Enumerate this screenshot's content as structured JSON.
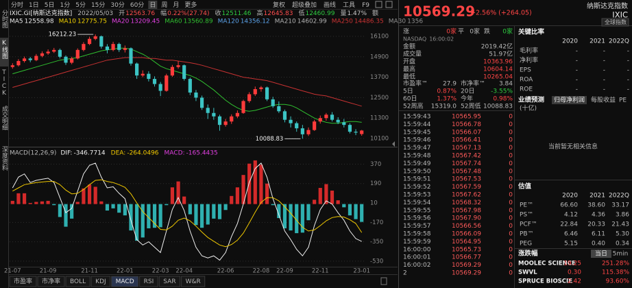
{
  "toolbar": {
    "tabs": [
      "分时",
      "1日",
      "5日",
      "1分",
      "5分",
      "15分",
      "30分",
      "60分",
      "日",
      "周",
      "月",
      "更多"
    ],
    "tools": [
      "复权",
      "超级叠加",
      "画线",
      "工具",
      "F9"
    ]
  },
  "sidebar": [
    "分时图",
    "K线图",
    "TICK",
    "成交明细",
    "深度资料"
  ],
  "info": {
    "symbol": "IXIC.GI[纳斯达克指数]",
    "date": "2022/05/03",
    "fields": [
      {
        "label": "开",
        "value": 12563.76,
        "color": "#ff4d4d"
      },
      {
        "label": "幅",
        "value": "0.22%(27.74)",
        "color": "#ff4d4d"
      },
      {
        "label": "收",
        "value": 12511.46,
        "color": "#2ecc40"
      },
      {
        "label": "高",
        "value": 12645.83,
        "color": "#ff4d4d"
      },
      {
        "label": "低",
        "value": 12460.99,
        "color": "#2ecc40"
      },
      {
        "label": "量",
        "value": "1.47%",
        "color": "#c8c8c8"
      },
      {
        "label": "额",
        "color": "#c8c8c8"
      }
    ]
  },
  "chart_data": [
    {
      "type": "candlestick",
      "up_color": "#ff3b3b",
      "down_color": "#3cc4c4",
      "open": [
        14300,
        14400,
        14650,
        14800,
        14700,
        14950,
        15100,
        15200,
        15300,
        14900,
        14550,
        14800,
        15300,
        15650,
        15950,
        16100,
        15500,
        15300,
        15650,
        15300,
        15400,
        14500,
        13800,
        13900,
        13600,
        13300,
        12900,
        13800,
        14300,
        14400,
        13600,
        12800,
        12500,
        11900,
        11600,
        11400,
        10900,
        11100,
        11400,
        11600,
        12300,
        12700,
        13000,
        13100,
        12400,
        12000,
        11700,
        11200,
        11000,
        10700,
        10350,
        10600,
        11100,
        11300,
        11500,
        11200,
        11050,
        10900,
        10500,
        10363.96
      ],
      "high": [
        14520,
        14760,
        14910,
        14890,
        15060,
        15220,
        15330,
        15420,
        15380,
        14980,
        14900,
        15390,
        15760,
        16070,
        16212.23,
        16150,
        15640,
        15780,
        15730,
        15560,
        15450,
        14560,
        14100,
        14050,
        13750,
        13420,
        13900,
        14420,
        14650,
        14450,
        13680,
        12950,
        12620,
        12100,
        11900,
        11500,
        11250,
        11520,
        11750,
        12380,
        12820,
        13150,
        13180,
        13150,
        12550,
        12280,
        11800,
        11400,
        11100,
        10900,
        10750,
        11200,
        11450,
        11600,
        11650,
        11350,
        11250,
        11000,
        10650,
        10604.14
      ],
      "low": [
        14200,
        14330,
        14560,
        14580,
        14640,
        14870,
        15010,
        15120,
        14800,
        14420,
        14460,
        14740,
        15220,
        15580,
        15870,
        15380,
        15100,
        15220,
        15180,
        15150,
        14380,
        13600,
        13700,
        13450,
        13150,
        12590,
        12850,
        13720,
        14200,
        13500,
        12650,
        12300,
        11780,
        11250,
        11200,
        10560,
        10800,
        10960,
        11300,
        11550,
        12200,
        12600,
        12850,
        12300,
        11900,
        11600,
        11050,
        10750,
        10500,
        10088.83,
        10250,
        10550,
        10980,
        11150,
        11100,
        10950,
        10750,
        10400,
        10300,
        10265.04
      ],
      "close": [
        14400,
        14650,
        14800,
        14700,
        14950,
        15100,
        15200,
        15300,
        14900,
        14550,
        14800,
        15300,
        15650,
        15950,
        16100,
        15500,
        15300,
        15650,
        15300,
        15400,
        14500,
        13800,
        13900,
        13600,
        13300,
        12900,
        13800,
        14300,
        14400,
        13600,
        12800,
        12500,
        11900,
        11600,
        11400,
        10900,
        11100,
        11400,
        11600,
        12300,
        12700,
        13000,
        13100,
        12400,
        12000,
        11700,
        11200,
        11000,
        10700,
        10350,
        10600,
        11100,
        11300,
        11500,
        11200,
        11050,
        10900,
        10500,
        10450,
        10569.29
      ],
      "high_label": 16212.23,
      "low_label": 10088.83,
      "ylim": [
        9860,
        16420
      ],
      "yticks": [
        16100,
        14900,
        13700,
        12500,
        11300,
        10100
      ],
      "grid": true,
      "series": [
        {
          "name": "MA5",
          "value": 12558.98,
          "color": "#e8e8e8"
        },
        {
          "name": "MA10",
          "value": 12775.75,
          "color": "#f0d000"
        },
        {
          "name": "MA20",
          "value": 13209.45,
          "color": "#e040e0"
        },
        {
          "name": "MA60",
          "value": 13560.89,
          "color": "#30c030",
          "values": [
            13900,
            14000,
            14100,
            14200,
            14300,
            14400,
            14500,
            14600,
            14700,
            14750,
            14800,
            14850,
            14950,
            15050,
            15150,
            15250,
            15300,
            15350,
            15400,
            15400,
            15350,
            15200,
            15050,
            14850,
            14600,
            14350,
            14200,
            14100,
            14000,
            13900,
            13800,
            13650,
            13450,
            13200,
            12950,
            12650,
            12350,
            12100,
            11900,
            11750,
            11700,
            11750,
            11850,
            11950,
            12050,
            12100,
            12100,
            12050,
            11900,
            11700,
            11500,
            11300,
            11150,
            11050,
            11000,
            11000,
            11050,
            11100,
            11100,
            11050
          ]
        },
        {
          "name": "MA120",
          "value": 14356.12,
          "color": "#5aa0e6"
        },
        {
          "name": "MA210",
          "value": 14602.99,
          "color": "#b0b0b0"
        },
        {
          "name": "MA250",
          "value": 14486.35,
          "color": "#c83232",
          "values": [
            13100,
            13200,
            13300,
            13400,
            13500,
            13600,
            13700,
            13800,
            13900,
            14000,
            14100,
            14200,
            14300,
            14400,
            14500,
            14600,
            14700,
            14750,
            14800,
            14850,
            14850,
            14850,
            14850,
            14800,
            14800,
            14750,
            14700,
            14700,
            14650,
            14600,
            14550,
            14486,
            14400,
            14300,
            14200,
            14100,
            14000,
            13900,
            13800,
            13700,
            13650,
            13600,
            13550,
            13500,
            13400,
            13300,
            13200,
            13100,
            13000,
            12900,
            12800,
            12700,
            12650,
            12600,
            12500,
            12400,
            12300,
            12200,
            12100,
            12000
          ]
        },
        {
          "name": "MA30",
          "value": 1356,
          "color": "#909090"
        }
      ]
    },
    {
      "type": "macd",
      "title": "MACD(12,26,9)",
      "categories": [
        "21-07",
        null,
        null,
        null,
        null,
        null,
        "21-09",
        null,
        null,
        null,
        null,
        null,
        null,
        "21-11",
        null,
        null,
        null,
        null,
        null,
        "22-01",
        null,
        null,
        null,
        null,
        null,
        "22-03",
        null,
        null,
        null,
        "22-04",
        null,
        null,
        null,
        null,
        null,
        null,
        "22-06",
        null,
        null,
        null,
        null,
        null,
        "22-08",
        null,
        null,
        null,
        "22-09",
        null,
        null,
        null,
        null,
        null,
        "22-11",
        null,
        null,
        null,
        null,
        null,
        null,
        "23-01"
      ],
      "ylim": [
        -575,
        430
      ],
      "yticks": [
        370,
        190,
        10,
        -170,
        -350,
        -530
      ],
      "grid": true,
      "series": [
        {
          "name": "DIF:",
          "value": -346.7714,
          "color": "#f0f0f0",
          "style": "line",
          "values": [
            150,
            250,
            280,
            200,
            220,
            230,
            240,
            200,
            60,
            -80,
            -40,
            120,
            280,
            360,
            380,
            250,
            150,
            160,
            100,
            50,
            -150,
            -330,
            -380,
            -350,
            -400,
            -450,
            -250,
            -50,
            60,
            -60,
            -250,
            -400,
            -480,
            -500,
            -480,
            -520,
            -450,
            -300,
            -180,
            0,
            200,
            330,
            380,
            250,
            50,
            -100,
            -250,
            -330,
            -420,
            -480,
            -400,
            -200,
            -50,
            30,
            0,
            -80,
            -150,
            -250,
            -320,
            -346.7714
          ]
        },
        {
          "name": "DEA:",
          "value": -264.0496,
          "color": "#f0c800",
          "style": "line",
          "values": [
            120,
            150,
            180,
            190,
            200,
            205,
            210,
            210,
            180,
            130,
            95,
            100,
            135,
            180,
            220,
            225,
            210,
            200,
            180,
            155,
            95,
            10,
            -70,
            -125,
            -180,
            -235,
            -240,
            -205,
            -150,
            -130,
            -155,
            -205,
            -260,
            -310,
            -345,
            -380,
            -395,
            -375,
            -335,
            -270,
            -175,
            -75,
            15,
            60,
            60,
            30,
            -25,
            -85,
            -150,
            -215,
            -250,
            -240,
            -200,
            -155,
            -125,
            -115,
            -120,
            -145,
            -180,
            -264.0496
          ]
        },
        {
          "name": "MACD:",
          "value": -165.4435,
          "color": "#e040e0",
          "style": "histogram",
          "up_color": "#d42a2a",
          "down_color": "#2fb0b0",
          "values": [
            30,
            100,
            100,
            10,
            20,
            25,
            30,
            -10,
            -120,
            -210,
            -135,
            20,
            145,
            180,
            160,
            25,
            -60,
            -40,
            -80,
            -105,
            -245,
            -340,
            -310,
            -225,
            -220,
            -215,
            -10,
            155,
            210,
            70,
            -95,
            -195,
            -220,
            -190,
            -135,
            -140,
            -55,
            75,
            155,
            270,
            375,
            405,
            365,
            190,
            -10,
            -130,
            -225,
            -245,
            -270,
            -265,
            -150,
            40,
            150,
            185,
            125,
            35,
            -30,
            -105,
            -140,
            -165.4435
          ]
        }
      ]
    }
  ],
  "indicator_tabs": [
    "市盈率",
    "市净率",
    "BOLL",
    "KDJ",
    "MACD",
    "RSI",
    "SAR",
    "W&R"
  ],
  "quote": {
    "price": 10569.29,
    "change_pct": "+2.56%",
    "change": "(+264.05)",
    "name": "纳斯达克指数",
    "code": "IXIC",
    "button": "全球指数",
    "breadth": [
      {
        "label": "涨",
        "value": "0家"
      },
      {
        "label": "平",
        "value": "0家"
      },
      {
        "label": "跌",
        "value": "0家"
      }
    ],
    "exchange": "NASDAQ",
    "time": "16:00:02",
    "stats": [
      {
        "label": "金额",
        "value": "2019.42亿"
      },
      {
        "label": "成交量",
        "value": "51.97亿"
      },
      {
        "label": "开盘",
        "value": 10363.96
      },
      {
        "label": "最高",
        "value": 10604.14
      },
      {
        "label": "最低",
        "value": 10265.04
      }
    ],
    "stats2": [
      [
        {
          "label": "市盈率™",
          "value": 27.9
        },
        {
          "label": "市净率™",
          "value": 3.84
        }
      ],
      [
        {
          "label": "5日",
          "value": "0.87%"
        },
        {
          "label": "20日",
          "value": "-3.55%"
        }
      ],
      [
        {
          "label": "60日",
          "value": "1.37%"
        },
        {
          "label": "今年",
          "value": "0.98%"
        }
      ],
      [
        {
          "label": "52周高",
          "value": "15319.0"
        },
        {
          "label": "52周低",
          "value": 10088.83
        }
      ]
    ],
    "ticks": [
      {
        "time": "15:59:43",
        "price": 10565.95,
        "volume": 0
      },
      {
        "time": "15:59:44",
        "price": 10566.78,
        "volume": 0
      },
      {
        "time": "15:59:45",
        "price": 10566.07,
        "volume": 0
      },
      {
        "time": "15:59:46",
        "price": 10566.41,
        "volume": 0
      },
      {
        "time": "15:59:47",
        "price": 10567.13,
        "volume": 0
      },
      {
        "time": "15:59:48",
        "price": 10567.42,
        "volume": 0
      },
      {
        "time": "15:59:49",
        "price": 10567.74,
        "volume": 0
      },
      {
        "time": "15:59:50",
        "price": 10567.48,
        "volume": 0
      },
      {
        "time": "15:59:51",
        "price": 10567.53,
        "volume": 0
      },
      {
        "time": "15:59:52",
        "price": 10567.59,
        "volume": 0
      },
      {
        "time": "15:59:53",
        "price": 10567.62,
        "volume": 0
      },
      {
        "time": "15:59:54",
        "price": 10568.32,
        "volume": 0
      },
      {
        "time": "15:59:55",
        "price": 10567.98,
        "volume": 0
      },
      {
        "time": "15:59:56",
        "price": "10567.90",
        "volume": 0
      },
      {
        "time": "15:59:57",
        "price": 10566.56,
        "volume": 0
      },
      {
        "time": "15:59:58",
        "price": 10566.09,
        "volume": 0
      },
      {
        "time": "15:59:59",
        "price": 10564.95,
        "volume": 0
      },
      {
        "time": "16:00:00",
        "price": 10565.73,
        "volume": 0
      },
      {
        "time": "16:00:01",
        "price": 10566.77,
        "volume": 0
      },
      {
        "time": "16:00:02",
        "price": 10569.29,
        "volume": 0
      },
      {
        "time": "2",
        "price": 10569.29,
        "volume": 0
      }
    ]
  },
  "fundamentals": {
    "ratios": {
      "title": "关键比率",
      "years": [
        "2020",
        "2021",
        "2022Q"
      ],
      "rows": [
        {
          "label": "毛利率",
          "values": [
            "-",
            "-",
            "-"
          ]
        },
        {
          "label": "净利率",
          "values": [
            "-",
            "-",
            "-"
          ]
        },
        {
          "label": "EPS",
          "values": [
            "-",
            "-",
            "-"
          ]
        },
        {
          "label": "ROA",
          "values": [
            "-",
            "-",
            "-"
          ]
        },
        {
          "label": "ROE",
          "values": [
            "-",
            "-",
            "-"
          ]
        }
      ]
    },
    "forecast": {
      "title": "业绩预测",
      "tabs": [
        "归母净利润",
        "每股收益",
        "PE"
      ],
      "unit": "(十亿)",
      "empty": "当前暂无相关信息"
    },
    "valuation": {
      "title": "估值",
      "years": [
        "2020",
        "2021",
        "2022Q"
      ],
      "rows": [
        {
          "label": "PE™",
          "values": [
            "66.60",
            "38.60",
            "33.17"
          ]
        },
        {
          "label": "PS™",
          "values": [
            "4.12",
            "4.36",
            "3.86"
          ]
        },
        {
          "label": "PCF™",
          "values": [
            "22.84",
            "20.33",
            "21.43"
          ]
        },
        {
          "label": "PB™",
          "values": [
            "6.46",
            "6.11",
            "5.30"
          ]
        },
        {
          "label": "PEG",
          "values": [
            "5.15",
            "0.40",
            "0.34"
          ]
        }
      ]
    },
    "movers": {
      "title": "涨跌幅",
      "tabs": [
        "当日",
        "5min"
      ],
      "rows": [
        {
          "name": "MOOLEC SCIENCE",
          "price": 19.25,
          "change": "251.28%"
        },
        {
          "name": "SWVL",
          "price": "0.30",
          "change": "115.38%"
        },
        {
          "name": "SPRUCE BIOSCIE",
          "price": 2.42,
          "change": "93.60%"
        }
      ]
    }
  }
}
